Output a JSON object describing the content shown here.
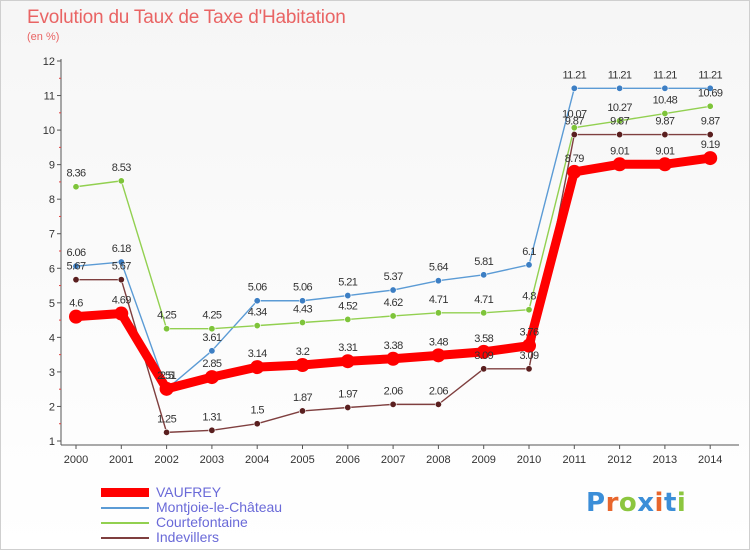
{
  "header": {
    "title": "Evolution du Taux de Taxe d'Habitation",
    "unit": "(en %)"
  },
  "colors": {
    "title": "#e96464",
    "legend_text": "#6a6ad8",
    "axis": "#555555"
  },
  "logo": {
    "text": "Proxiti",
    "letter_colors": [
      "#3b8ed8",
      "#e8662d",
      "#8cc63f",
      "#3b8ed8",
      "#e8662d",
      "#3b8ed8",
      "#8cc63f"
    ]
  },
  "chart_data": {
    "type": "line",
    "title": "Evolution du Taux de Taxe d'Habitation",
    "ylabel": "(en %)",
    "xlabel": "",
    "x": [
      "2000",
      "2001",
      "2002",
      "2003",
      "2004",
      "2005",
      "2006",
      "2007",
      "2008",
      "2009",
      "2010",
      "2011",
      "2012",
      "2013",
      "2014"
    ],
    "ylim": [
      1,
      12
    ],
    "yticks": [
      "1",
      "2",
      "3",
      "4",
      "5",
      "6",
      "7",
      "8",
      "9",
      "10",
      "11",
      "12"
    ],
    "grid": false,
    "legend_position": "bottom-left",
    "series": [
      {
        "name": "VAUFREY",
        "color": "#ff0000",
        "emphasis": true,
        "values": [
          4.6,
          4.69,
          2.51,
          2.85,
          3.14,
          3.2,
          3.31,
          3.38,
          3.48,
          3.58,
          3.76,
          8.79,
          9.01,
          9.01,
          9.19
        ],
        "labels": [
          "4.6",
          "4.69",
          "2.51",
          "2.85",
          "3.14",
          "3.2",
          "3.31",
          "3.38",
          "3.48",
          "3.58",
          "3.76",
          "8.79",
          "9.01",
          "9.01",
          "9.19"
        ]
      },
      {
        "name": "Montjoie-le-Château",
        "color": "#5b9bd5",
        "marker": "#3d7fc4",
        "values": [
          6.06,
          6.18,
          2.5,
          3.61,
          5.06,
          5.06,
          5.21,
          5.37,
          5.64,
          5.81,
          6.1,
          11.21,
          11.21,
          11.21,
          11.21
        ],
        "labels": [
          "6.06",
          "6.18",
          "2.5",
          "3.61",
          "5.06",
          "5.06",
          "5.21",
          "5.37",
          "5.64",
          "5.81",
          "6.1",
          "11.21",
          "11.21",
          "11.21",
          "11.21"
        ]
      },
      {
        "name": "Courtefontaine",
        "color": "#92d050",
        "marker": "#7ec43a",
        "values": [
          8.36,
          8.53,
          4.25,
          4.25,
          4.34,
          4.43,
          4.52,
          4.62,
          4.71,
          4.71,
          4.8,
          10.07,
          10.27,
          10.48,
          10.69
        ],
        "labels": [
          "8.36",
          "8.53",
          "4.25",
          "4.25",
          "4.34",
          "4.43",
          "4.52",
          "4.62",
          "4.71",
          "4.71",
          "4.8",
          "10.07",
          "10.27",
          "10.48",
          "10.69"
        ]
      },
      {
        "name": "Indevillers",
        "color": "#7f3f3f",
        "marker": "#5a1f1f",
        "values": [
          5.67,
          5.67,
          1.25,
          1.31,
          1.5,
          1.87,
          1.97,
          2.06,
          2.06,
          3.09,
          3.09,
          9.87,
          9.87,
          9.87,
          9.87
        ],
        "labels": [
          "5.67",
          "5.67",
          "1.25",
          "1.31",
          "1.5",
          "1.87",
          "1.97",
          "2.06",
          "2.06",
          "3.09",
          "3.09",
          "9.87",
          "9.87",
          "9.87",
          "9.87"
        ]
      }
    ]
  }
}
